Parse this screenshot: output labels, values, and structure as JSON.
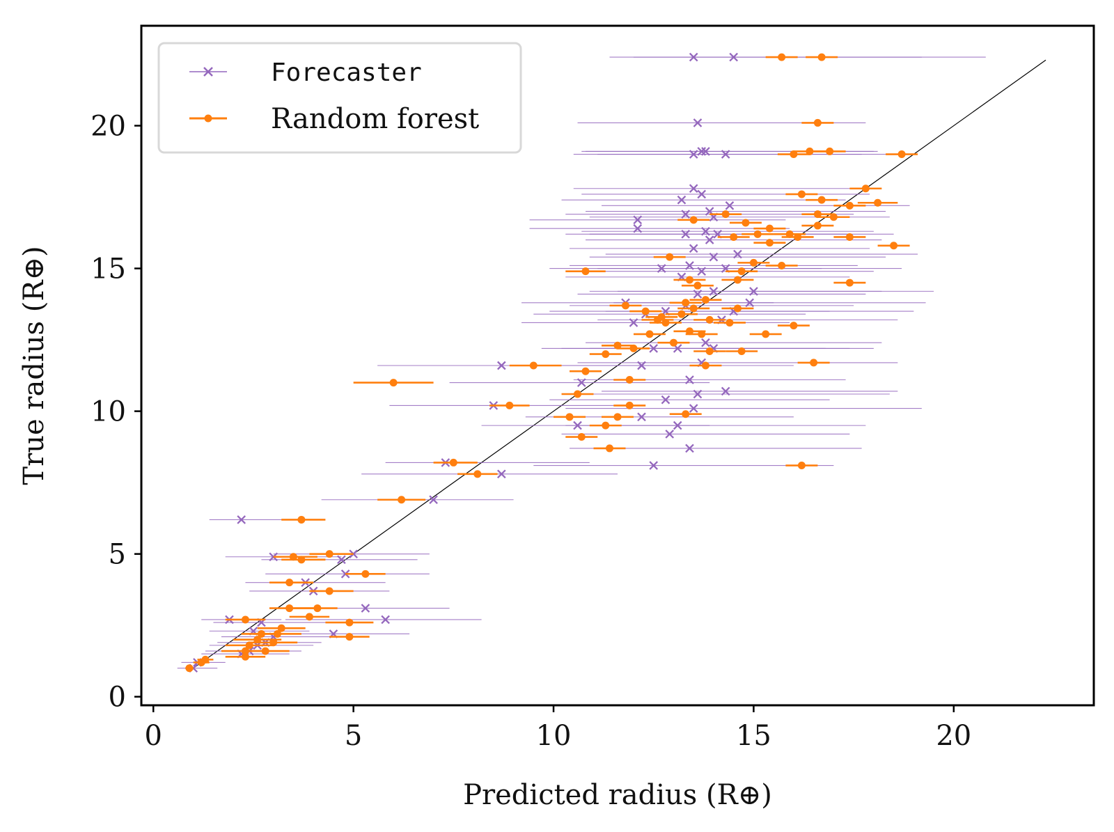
{
  "chart_data": {
    "type": "scatter",
    "xlabel": "Predicted radius (R⊕)",
    "ylabel": "True radius (R⊕)",
    "xlim": [
      -0.3,
      23.5
    ],
    "ylim": [
      -0.3,
      23.5
    ],
    "xticks": [
      "0",
      "5",
      "10",
      "15",
      "20"
    ],
    "yticks": [
      "0",
      "5",
      "10",
      "15",
      "20"
    ],
    "grid": false,
    "legend_position": "top-left",
    "reference_line": {
      "from": [
        1.0,
        1.0
      ],
      "to": [
        22.3,
        22.3
      ],
      "color": "#000000"
    },
    "series": [
      {
        "name": "Forecaster",
        "marker": "x",
        "color": "#9467bd",
        "points": [
          [
            1.0,
            1.0,
            0.6,
            1.6
          ],
          [
            1.1,
            1.2,
            0.7,
            1.8
          ],
          [
            2.2,
            1.5,
            1.2,
            3.4
          ],
          [
            2.4,
            1.6,
            1.3,
            3.7
          ],
          [
            2.6,
            1.8,
            1.4,
            4.0
          ],
          [
            2.8,
            1.9,
            1.6,
            4.2
          ],
          [
            3.0,
            2.1,
            1.7,
            4.6
          ],
          [
            2.5,
            2.3,
            1.4,
            3.9
          ],
          [
            2.7,
            2.6,
            1.5,
            4.3
          ],
          [
            1.9,
            2.7,
            1.2,
            3.2
          ],
          [
            4.5,
            2.2,
            2.6,
            6.4
          ],
          [
            5.3,
            3.1,
            3.1,
            7.4
          ],
          [
            5.8,
            2.7,
            3.3,
            8.2
          ],
          [
            3.0,
            4.9,
            1.8,
            4.7
          ],
          [
            3.8,
            4.0,
            2.3,
            5.8
          ],
          [
            4.0,
            3.7,
            2.4,
            5.9
          ],
          [
            4.8,
            4.3,
            2.8,
            6.9
          ],
          [
            5.0,
            5.0,
            3.0,
            6.9
          ],
          [
            4.7,
            4.8,
            2.7,
            6.6
          ],
          [
            2.2,
            6.2,
            1.4,
            3.5
          ],
          [
            7.0,
            6.9,
            4.2,
            9.0
          ],
          [
            8.7,
            7.8,
            5.2,
            11.6
          ],
          [
            7.3,
            8.2,
            5.8,
            10.9
          ],
          [
            8.5,
            10.2,
            5.9,
            11.8
          ],
          [
            8.7,
            11.6,
            5.6,
            12.4
          ],
          [
            10.7,
            11.0,
            7.4,
            13.9
          ],
          [
            10.6,
            9.5,
            8.2,
            13.9
          ],
          [
            12.5,
            8.1,
            9.5,
            17.0
          ],
          [
            12.9,
            9.2,
            10.2,
            17.4
          ],
          [
            13.1,
            9.5,
            10.3,
            17.8
          ],
          [
            13.4,
            8.7,
            10.4,
            17.7
          ],
          [
            12.2,
            9.8,
            9.3,
            16.0
          ],
          [
            12.8,
            10.4,
            9.9,
            16.9
          ],
          [
            13.5,
            10.1,
            10.3,
            19.2
          ],
          [
            13.6,
            10.6,
            10.7,
            18.4
          ],
          [
            14.3,
            10.7,
            11.2,
            18.6
          ],
          [
            13.4,
            11.1,
            10.5,
            17.3
          ],
          [
            12.2,
            11.6,
            9.3,
            16.0
          ],
          [
            13.7,
            11.7,
            10.6,
            18.6
          ],
          [
            12.5,
            12.2,
            9.7,
            16.8
          ],
          [
            13.1,
            12.2,
            10.2,
            17.4
          ],
          [
            14.0,
            12.2,
            10.9,
            18.0
          ],
          [
            13.8,
            12.4,
            10.8,
            18.2
          ],
          [
            12.0,
            13.1,
            9.2,
            15.9
          ],
          [
            12.3,
            13.4,
            9.5,
            16.3
          ],
          [
            12.8,
            13.5,
            9.9,
            16.9
          ],
          [
            13.3,
            13.7,
            10.4,
            17.5
          ],
          [
            14.2,
            13.2,
            11.1,
            18.6
          ],
          [
            14.5,
            13.5,
            11.3,
            19.0
          ],
          [
            11.8,
            13.8,
            9.2,
            15.5
          ],
          [
            13.6,
            14.1,
            10.6,
            17.8
          ],
          [
            14.0,
            14.2,
            10.9,
            18.2
          ],
          [
            14.9,
            13.8,
            11.5,
            19.3
          ],
          [
            15.0,
            14.2,
            11.6,
            19.5
          ],
          [
            13.2,
            14.7,
            10.3,
            17.4
          ],
          [
            13.7,
            14.9,
            10.6,
            18.0
          ],
          [
            14.3,
            15.0,
            11.1,
            18.7
          ],
          [
            12.7,
            15.0,
            9.9,
            16.7
          ],
          [
            13.4,
            15.1,
            10.4,
            17.6
          ],
          [
            14.0,
            15.4,
            10.9,
            18.3
          ],
          [
            13.5,
            15.7,
            10.4,
            17.9
          ],
          [
            14.6,
            15.5,
            11.3,
            19.1
          ],
          [
            13.9,
            16.0,
            10.8,
            18.2
          ],
          [
            13.3,
            16.2,
            10.3,
            17.4
          ],
          [
            13.8,
            16.3,
            10.7,
            18.0
          ],
          [
            12.1,
            16.4,
            9.4,
            15.9
          ],
          [
            12.1,
            16.7,
            9.4,
            15.8
          ],
          [
            13.3,
            16.9,
            10.3,
            17.5
          ],
          [
            14.0,
            16.8,
            10.9,
            18.4
          ],
          [
            13.9,
            17.0,
            10.8,
            18.3
          ],
          [
            14.4,
            17.2,
            11.2,
            18.9
          ],
          [
            13.2,
            17.4,
            10.2,
            17.3
          ],
          [
            13.7,
            17.6,
            10.7,
            17.9
          ],
          [
            13.5,
            17.8,
            10.5,
            17.7
          ],
          [
            14.1,
            16.2,
            10.9,
            18.5
          ],
          [
            14.3,
            19.0,
            11.1,
            18.8
          ],
          [
            13.5,
            19.0,
            10.5,
            17.7
          ],
          [
            13.7,
            19.1,
            10.7,
            18.0
          ],
          [
            13.8,
            19.1,
            10.8,
            18.1
          ],
          [
            13.6,
            20.1,
            10.6,
            17.8
          ],
          [
            13.5,
            22.4,
            11.4,
            19.2
          ],
          [
            14.5,
            22.4,
            12.0,
            20.8
          ]
        ]
      },
      {
        "name": "Random forest",
        "marker": "o",
        "color": "#ff7f0e",
        "points": [
          [
            0.9,
            1.0,
            0.8,
            1.0
          ],
          [
            1.2,
            1.2,
            1.0,
            1.4
          ],
          [
            1.3,
            1.3,
            1.1,
            1.5
          ],
          [
            2.3,
            1.4,
            1.8,
            2.8
          ],
          [
            2.3,
            1.6,
            1.7,
            2.9
          ],
          [
            2.4,
            1.8,
            1.8,
            3.0
          ],
          [
            2.6,
            2.0,
            2.0,
            3.2
          ],
          [
            2.8,
            1.6,
            2.2,
            3.4
          ],
          [
            3.0,
            1.9,
            2.4,
            3.6
          ],
          [
            3.1,
            2.2,
            2.5,
            3.7
          ],
          [
            3.2,
            2.4,
            2.6,
            3.8
          ],
          [
            2.7,
            2.2,
            2.2,
            3.2
          ],
          [
            2.3,
            2.7,
            1.8,
            2.8
          ],
          [
            4.9,
            2.6,
            4.3,
            5.5
          ],
          [
            4.9,
            2.1,
            4.4,
            5.4
          ],
          [
            3.4,
            3.1,
            2.9,
            4.0
          ],
          [
            4.1,
            3.1,
            3.5,
            4.6
          ],
          [
            3.9,
            2.8,
            3.4,
            4.4
          ],
          [
            3.4,
            4.0,
            2.9,
            4.0
          ],
          [
            3.5,
            4.9,
            3.0,
            4.1
          ],
          [
            3.7,
            4.8,
            3.2,
            4.3
          ],
          [
            4.4,
            5.0,
            3.9,
            5.0
          ],
          [
            4.4,
            3.7,
            3.9,
            5.0
          ],
          [
            5.3,
            4.3,
            4.8,
            5.8
          ],
          [
            3.7,
            6.2,
            3.2,
            4.3
          ],
          [
            6.2,
            6.9,
            5.6,
            6.8
          ],
          [
            7.5,
            8.2,
            7.0,
            8.1
          ],
          [
            8.1,
            7.8,
            7.6,
            8.6
          ],
          [
            8.9,
            10.2,
            8.4,
            9.4
          ],
          [
            9.5,
            11.6,
            8.9,
            10.2
          ],
          [
            6.0,
            11.0,
            5.0,
            7.0
          ],
          [
            10.4,
            9.8,
            10.0,
            10.8
          ],
          [
            10.7,
            9.1,
            10.3,
            11.1
          ],
          [
            10.6,
            10.6,
            10.2,
            11.0
          ],
          [
            10.8,
            11.4,
            10.4,
            11.2
          ],
          [
            10.8,
            14.9,
            10.3,
            11.3
          ],
          [
            11.3,
            9.5,
            10.9,
            11.7
          ],
          [
            11.4,
            8.7,
            11.0,
            11.8
          ],
          [
            11.6,
            9.8,
            11.2,
            12.0
          ],
          [
            11.9,
            10.2,
            11.5,
            12.3
          ],
          [
            11.6,
            12.3,
            11.2,
            12.0
          ],
          [
            11.3,
            12.0,
            10.9,
            11.7
          ],
          [
            12.0,
            12.2,
            11.6,
            12.4
          ],
          [
            12.4,
            12.7,
            12.0,
            12.8
          ],
          [
            12.8,
            13.1,
            12.4,
            13.2
          ],
          [
            12.3,
            13.5,
            11.9,
            12.7
          ],
          [
            12.6,
            13.2,
            12.2,
            13.0
          ],
          [
            13.0,
            12.4,
            12.6,
            13.4
          ],
          [
            13.2,
            13.4,
            12.8,
            13.6
          ],
          [
            13.4,
            12.8,
            13.0,
            13.8
          ],
          [
            13.3,
            13.8,
            12.9,
            13.7
          ],
          [
            13.5,
            13.6,
            13.1,
            13.9
          ],
          [
            13.6,
            14.4,
            13.2,
            14.0
          ],
          [
            13.8,
            13.9,
            13.4,
            14.2
          ],
          [
            13.9,
            13.2,
            13.5,
            14.3
          ],
          [
            13.7,
            12.7,
            13.3,
            14.1
          ],
          [
            13.4,
            14.6,
            13.0,
            13.8
          ],
          [
            12.9,
            15.4,
            12.5,
            13.3
          ],
          [
            13.8,
            11.6,
            13.4,
            14.2
          ],
          [
            14.4,
            13.1,
            14.0,
            14.8
          ],
          [
            14.6,
            13.6,
            14.2,
            15.0
          ],
          [
            14.6,
            14.6,
            14.2,
            15.0
          ],
          [
            14.7,
            14.9,
            14.3,
            15.1
          ],
          [
            15.0,
            15.2,
            14.6,
            15.4
          ],
          [
            15.1,
            16.2,
            14.7,
            15.5
          ],
          [
            15.3,
            12.7,
            14.9,
            15.7
          ],
          [
            15.7,
            15.1,
            15.3,
            16.1
          ],
          [
            15.4,
            16.4,
            15.0,
            15.8
          ],
          [
            15.4,
            15.9,
            15.0,
            15.8
          ],
          [
            15.9,
            16.2,
            15.5,
            16.3
          ],
          [
            16.0,
            13.0,
            15.6,
            16.4
          ],
          [
            16.1,
            16.1,
            15.7,
            16.5
          ],
          [
            16.2,
            17.6,
            15.8,
            16.6
          ],
          [
            16.6,
            16.5,
            16.2,
            17.0
          ],
          [
            16.7,
            17.4,
            16.3,
            17.1
          ],
          [
            16.6,
            16.9,
            16.2,
            17.0
          ],
          [
            17.0,
            16.8,
            16.6,
            17.4
          ],
          [
            17.4,
            17.2,
            17.0,
            17.8
          ],
          [
            17.4,
            16.1,
            17.0,
            17.8
          ],
          [
            17.8,
            17.8,
            17.4,
            18.2
          ],
          [
            18.1,
            17.3,
            17.6,
            18.6
          ],
          [
            17.4,
            14.5,
            17.0,
            17.8
          ],
          [
            18.5,
            15.8,
            18.1,
            18.9
          ],
          [
            16.6,
            20.1,
            16.2,
            17.0
          ],
          [
            16.4,
            19.1,
            16.0,
            16.8
          ],
          [
            16.0,
            19.0,
            15.6,
            16.4
          ],
          [
            16.9,
            19.1,
            16.5,
            17.3
          ],
          [
            18.7,
            19.0,
            18.3,
            19.1
          ],
          [
            15.7,
            22.4,
            15.3,
            16.1
          ],
          [
            16.7,
            22.4,
            16.3,
            17.1
          ],
          [
            16.2,
            8.1,
            15.8,
            16.6
          ],
          [
            16.5,
            11.7,
            16.1,
            16.9
          ],
          [
            14.8,
            16.6,
            14.4,
            15.2
          ],
          [
            14.5,
            16.1,
            14.1,
            14.9
          ],
          [
            14.3,
            16.9,
            13.9,
            14.7
          ],
          [
            13.5,
            16.7,
            13.1,
            13.9
          ],
          [
            14.7,
            12.1,
            14.3,
            15.1
          ],
          [
            13.3,
            9.9,
            12.9,
            13.7
          ],
          [
            11.8,
            13.7,
            11.4,
            12.2
          ],
          [
            11.9,
            11.1,
            11.5,
            12.3
          ],
          [
            12.7,
            13.3,
            12.3,
            13.1
          ],
          [
            13.9,
            12.1,
            13.5,
            14.3
          ]
        ]
      }
    ]
  }
}
